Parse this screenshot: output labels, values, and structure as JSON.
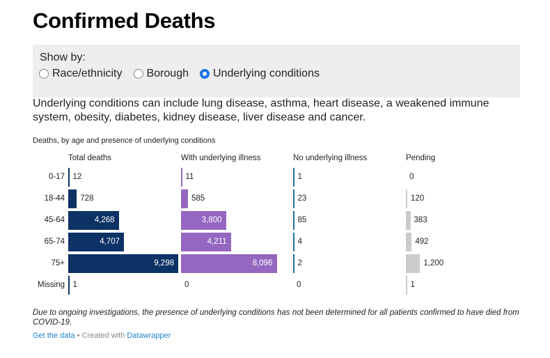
{
  "title": "Confirmed Deaths",
  "controls": {
    "show_by_label": "Show by:",
    "options": [
      {
        "label": "Race/ethnicity",
        "selected": false
      },
      {
        "label": "Borough",
        "selected": false
      },
      {
        "label": "Underlying conditions",
        "selected": true
      }
    ]
  },
  "description": "Underlying conditions can include lung disease, asthma, heart disease, a weakened immune system, obesity, diabetes, kidney disease, liver disease and cancer.",
  "colors": {
    "total": "#0c3266",
    "with_illness": "#9567c1",
    "no_illness": "#1f6f9f",
    "pending": "#cccccc",
    "accent_radio": "#1d73e8",
    "link": "#1d81c8"
  },
  "chart_data": {
    "type": "bar",
    "title": "Deaths, by age and presence of underlying conditions",
    "categories": [
      "0-17",
      "18-44",
      "45-64",
      "65-74",
      "75+",
      "Missing"
    ],
    "series": [
      {
        "name": "Total deaths",
        "values": [
          12,
          728,
          4268,
          4707,
          9298,
          1
        ],
        "labels": [
          "12",
          "728",
          "4,268",
          "4,707",
          "9,298",
          "1"
        ]
      },
      {
        "name": "With underlying illness",
        "values": [
          11,
          585,
          3800,
          4211,
          8096,
          0
        ],
        "labels": [
          "11",
          "585",
          "3,800",
          "4,211",
          "8,096",
          "0"
        ]
      },
      {
        "name": "No underlying illness",
        "values": [
          1,
          23,
          85,
          4,
          2,
          0
        ],
        "labels": [
          "1",
          "23",
          "85",
          "4",
          "2",
          "0"
        ]
      },
      {
        "name": "Pending",
        "values": [
          0,
          120,
          383,
          492,
          1200,
          1
        ],
        "labels": [
          "0",
          "120",
          "383",
          "492",
          "1,200",
          "1"
        ]
      }
    ],
    "scale_max": 9298
  },
  "note": "Due to ongoing investigations, the presence of underlying conditions has not been determined for all patients confirmed to have died from COVID-19.",
  "footer": {
    "get_data": "Get the data",
    "separator": " • Created with ",
    "datawrapper": "Datawrapper"
  }
}
